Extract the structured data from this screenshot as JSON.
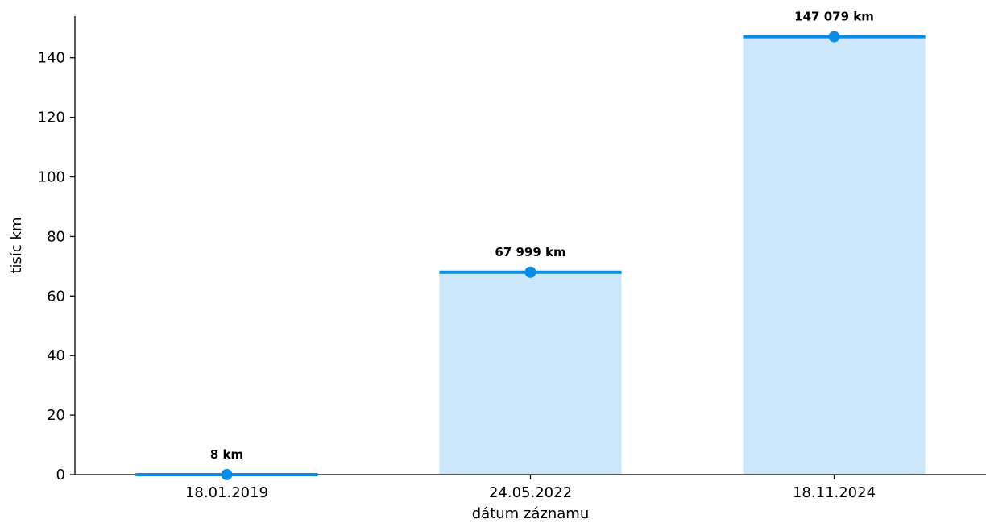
{
  "chart_data": {
    "type": "bar",
    "categories": [
      "18.01.2019",
      "24.05.2022",
      "18.11.2024"
    ],
    "values": [
      0.008,
      67.999,
      147.079
    ],
    "data_labels": [
      "8 km",
      "67 999 km",
      "147 079 km"
    ],
    "title": "",
    "xlabel": "dátum záznamu",
    "ylabel": "tisíc km",
    "ylim": [
      0,
      154
    ],
    "yticks": [
      0,
      20,
      40,
      60,
      80,
      100,
      120,
      140
    ],
    "grid": false,
    "legend": "none",
    "colors": {
      "bar_fill": "#cce7fa",
      "line": "#0a8ce6",
      "marker": "#0a8ce6",
      "axis": "#000000"
    }
  }
}
